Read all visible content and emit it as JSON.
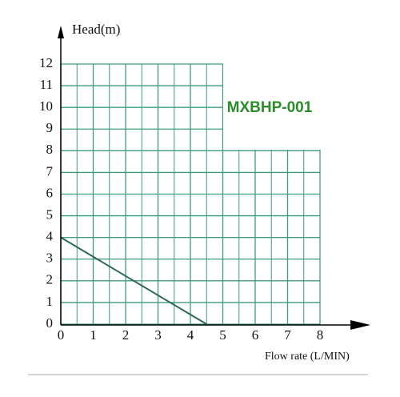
{
  "chart_data": {
    "type": "line",
    "y_label": "Head(m)",
    "x_label": "Flow rate (L/MIN)",
    "annotation": "MXBHP-001",
    "xlim": [
      0,
      8
    ],
    "xticks": [
      0,
      1,
      2,
      3,
      4,
      5,
      6,
      7,
      8
    ],
    "ylim": [
      0,
      12
    ],
    "yticks": [
      0,
      1,
      2,
      3,
      4,
      5,
      6,
      7,
      8,
      9,
      10,
      11,
      12
    ],
    "grid": true,
    "grid_color": "#3f9b7c",
    "series": [
      {
        "color": "#2e6a50",
        "x": [
          0,
          4.5
        ],
        "values": [
          4,
          0
        ]
      }
    ]
  }
}
